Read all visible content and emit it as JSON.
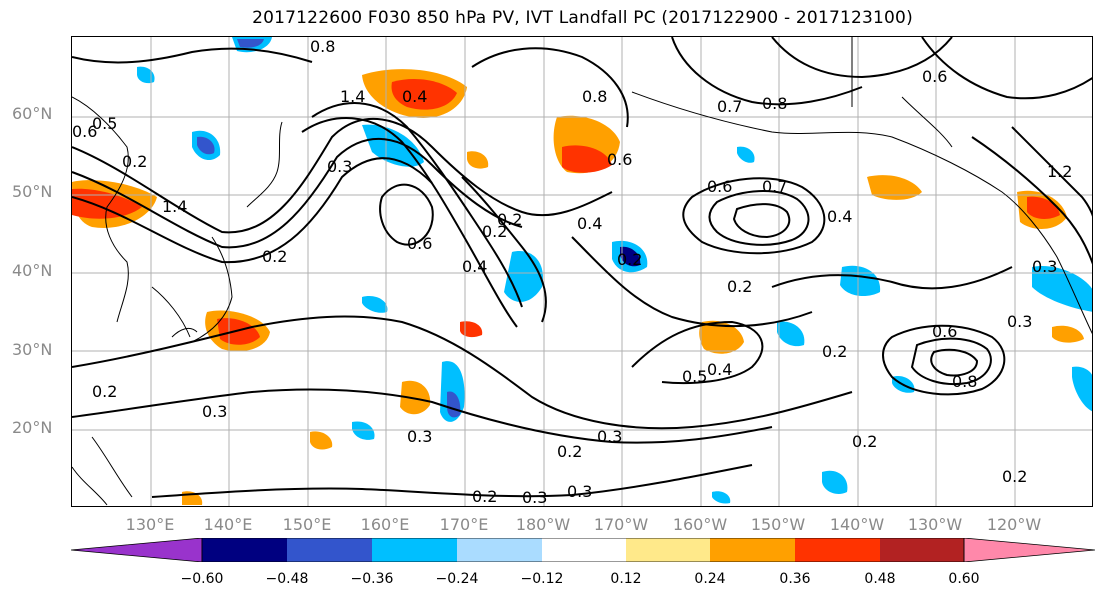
{
  "title": "2017122600 F030 850 hPa PV, IVT Landfall PC (2017122900 - 2017123100)",
  "lat_labels": [
    "60°N",
    "50°N",
    "40°N",
    "30°N",
    "20°N"
  ],
  "lon_labels": [
    "130°E",
    "140°E",
    "150°E",
    "160°E",
    "170°E",
    "180°W",
    "170°W",
    "160°W",
    "150°W",
    "140°W",
    "130°W",
    "120°W"
  ],
  "colorbar": {
    "ticks": [
      "−0.60",
      "−0.48",
      "−0.36",
      "−0.24",
      "−0.12",
      "0.12",
      "0.24",
      "0.36",
      "0.48",
      "0.60"
    ],
    "colors": [
      "#9933cc",
      "#000080",
      "#3355cc",
      "#00bfff",
      "#aadcff",
      "#ffffff",
      "#ffe98a",
      "#ffa000",
      "#ff3300",
      "#b22222",
      "#ff88aa"
    ]
  },
  "contour_labels": [
    "0.8",
    "1.4",
    "0.5",
    "0.6",
    "0.4",
    "0.3",
    "0.2",
    "0.4",
    "0.6",
    "0.2",
    "0.4",
    "0.8",
    "0.7",
    "0.8",
    "0.4",
    "0.6",
    "0.2",
    "0.3",
    "0.2",
    "0.3",
    "0.2",
    "0.3",
    "0.2",
    "0.5",
    "0.4",
    "0.2",
    "0.3",
    "0.8",
    "0.6",
    "0.3",
    "0.2",
    "0.2",
    "0.3",
    "1.2",
    "0.6",
    "0.2",
    "0.2",
    "0.3",
    "0.2",
    "0.6",
    "1.4",
    "0.7"
  ]
}
